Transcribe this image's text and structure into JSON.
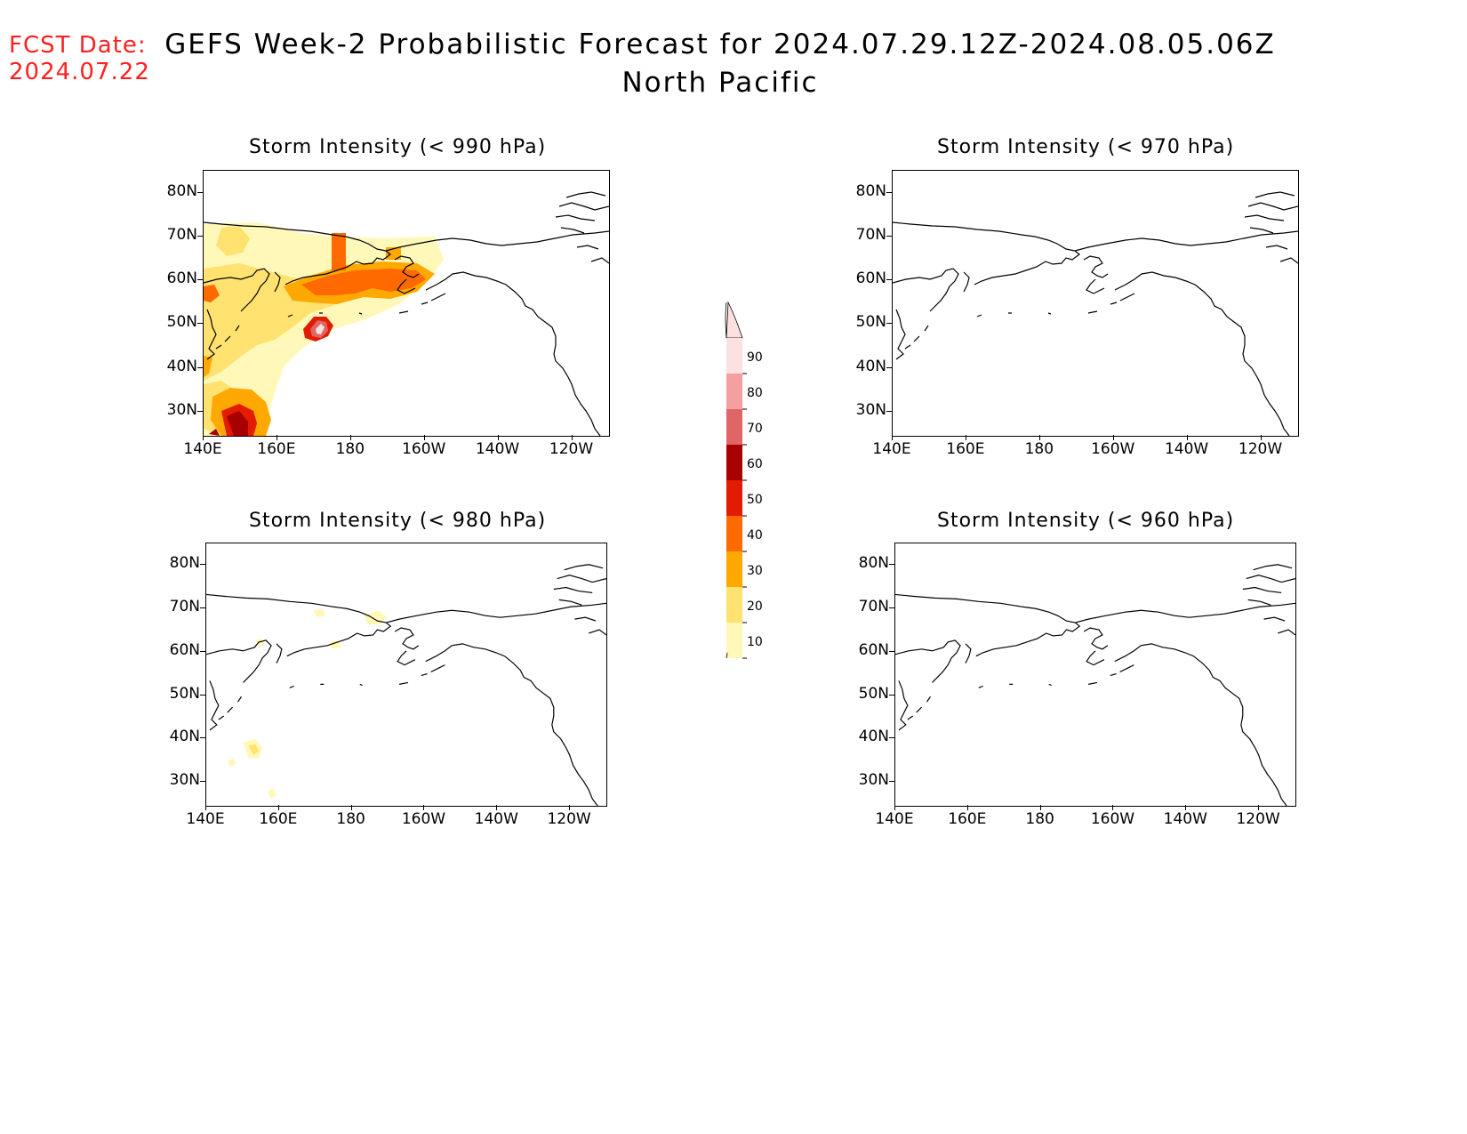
{
  "header": {
    "fcst_label": "FCST Date:",
    "fcst_date": "2024.07.22",
    "title": "GEFS Week-2 Probabilistic Forecast for 2024.07.29.12Z-2024.08.05.06Z",
    "subtitle": "North Pacific"
  },
  "axes": {
    "lat_labels": [
      "80N",
      "70N",
      "60N",
      "50N",
      "40N",
      "30N"
    ],
    "lon_labels": [
      "140E",
      "160E",
      "180",
      "160W",
      "140W",
      "120W"
    ]
  },
  "panels": [
    {
      "id": "p990",
      "title": "Storm Intensity (< 990 hPa)",
      "activity": "high"
    },
    {
      "id": "p970",
      "title": "Storm Intensity (< 970 hPa)",
      "activity": "none"
    },
    {
      "id": "p980",
      "title": "Storm Intensity (< 980 hPa)",
      "activity": "low"
    },
    {
      "id": "p960",
      "title": "Storm Intensity (< 960 hPa)",
      "activity": "none"
    }
  ],
  "colorbar": {
    "labels": [
      "90",
      "80",
      "70",
      "60",
      "50",
      "40",
      "30",
      "20",
      "10"
    ],
    "colors": {
      "10": "#fff8b8",
      "20": "#ffe270",
      "30": "#ffa800",
      "40": "#ff6a00",
      "50": "#e21c00",
      "60": "#a80000",
      "70": "#e06666",
      "80": "#f4a0a0",
      "90": "#fde0e0"
    }
  },
  "colors": {
    "fcst_text": "#ff2020",
    "coastline": "#000000"
  }
}
